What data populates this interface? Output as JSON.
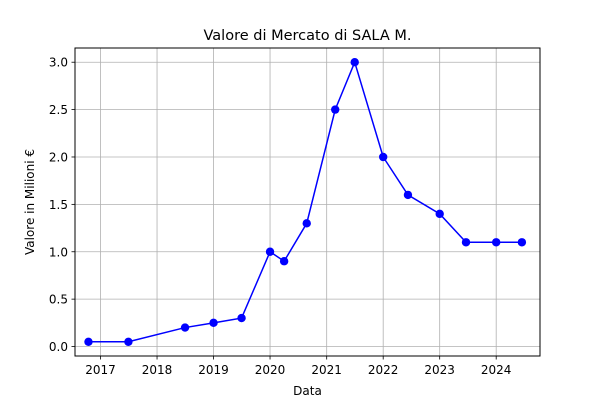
{
  "chart_data": {
    "type": "line",
    "title": "Valore di Mercato di SALA M.",
    "xlabel": "Data",
    "ylabel": "Valore in Milioni €",
    "grid": true,
    "xlim": [
      "2016-07-20",
      "2024-10-10"
    ],
    "ylim": [
      -0.1,
      3.15
    ],
    "x_ticks": [
      2017,
      2018,
      2019,
      2020,
      2021,
      2022,
      2023,
      2024
    ],
    "y_ticks": [
      0.0,
      0.5,
      1.0,
      1.5,
      2.0,
      2.5,
      3.0
    ],
    "y_tick_labels": [
      "0.0",
      "0.5",
      "1.0",
      "1.5",
      "2.0",
      "2.5",
      "3.0"
    ],
    "color": "#0000ff",
    "series": [
      {
        "x": [
          "2016-10-15",
          "2017-06-30",
          "2018-07-01",
          "2019-01-01",
          "2019-07-01",
          "2020-01-01",
          "2020-04-01",
          "2020-08-25",
          "2021-02-25",
          "2021-07-01",
          "2022-01-01",
          "2022-06-10",
          "2023-01-01",
          "2023-06-20",
          "2024-01-01",
          "2024-06-15"
        ],
        "values": [
          0.05,
          0.05,
          0.2,
          0.25,
          0.3,
          1.0,
          0.9,
          1.3,
          2.5,
          3.0,
          2.0,
          1.6,
          1.4,
          1.1,
          1.1,
          1.1
        ]
      }
    ]
  }
}
